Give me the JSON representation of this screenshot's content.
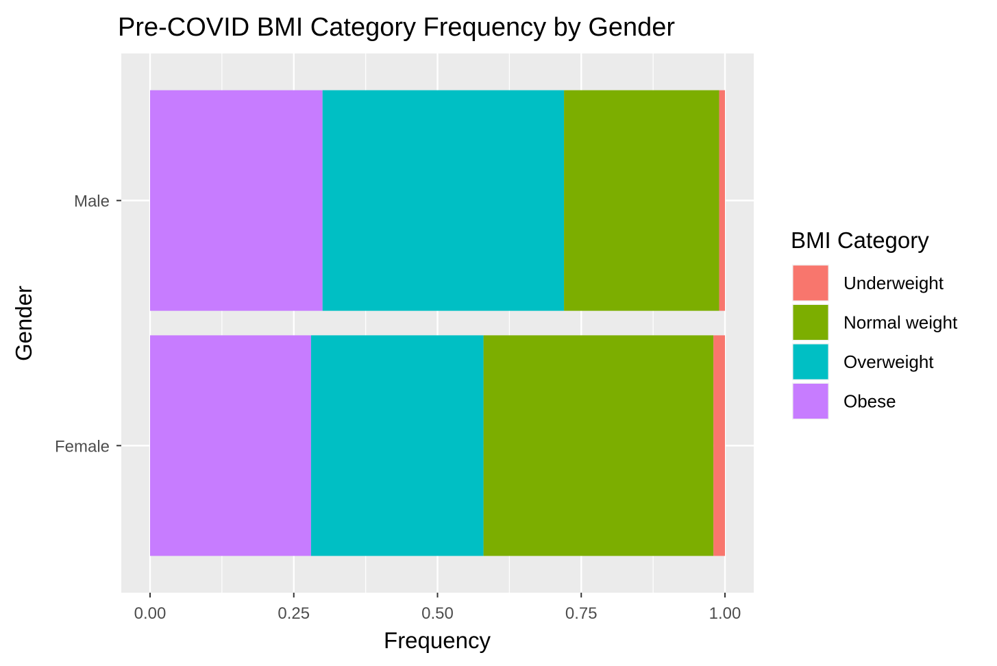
{
  "chart_data": {
    "type": "bar",
    "orientation": "horizontal",
    "stacked": true,
    "title": "Pre-COVID BMI Category Frequency by Gender",
    "xlabel": "Frequency",
    "ylabel": "Gender",
    "xlim": [
      -0.1,
      2.1
    ],
    "x_ticks": [
      0,
      0.25,
      0.5,
      0.75,
      1
    ],
    "x_tick_labels": [
      "0.00",
      "0.25",
      "0.50",
      "0.75",
      "1.00"
    ],
    "categories": [
      "Female",
      "Male"
    ],
    "grid": true,
    "legend_position": "right",
    "legend_title": "BMI Category",
    "series": [
      {
        "name": "Underweight",
        "color": "#F8766D",
        "values": [
          0.02,
          0.01
        ]
      },
      {
        "name": "Normal weight",
        "color": "#7CAE00",
        "values": [
          0.4,
          0.27
        ]
      },
      {
        "name": "Overweight",
        "color": "#00BFC4",
        "values": [
          0.3,
          0.42
        ]
      },
      {
        "name": "Obese",
        "color": "#C77CFF",
        "values": [
          0.28,
          0.3
        ]
      }
    ]
  }
}
